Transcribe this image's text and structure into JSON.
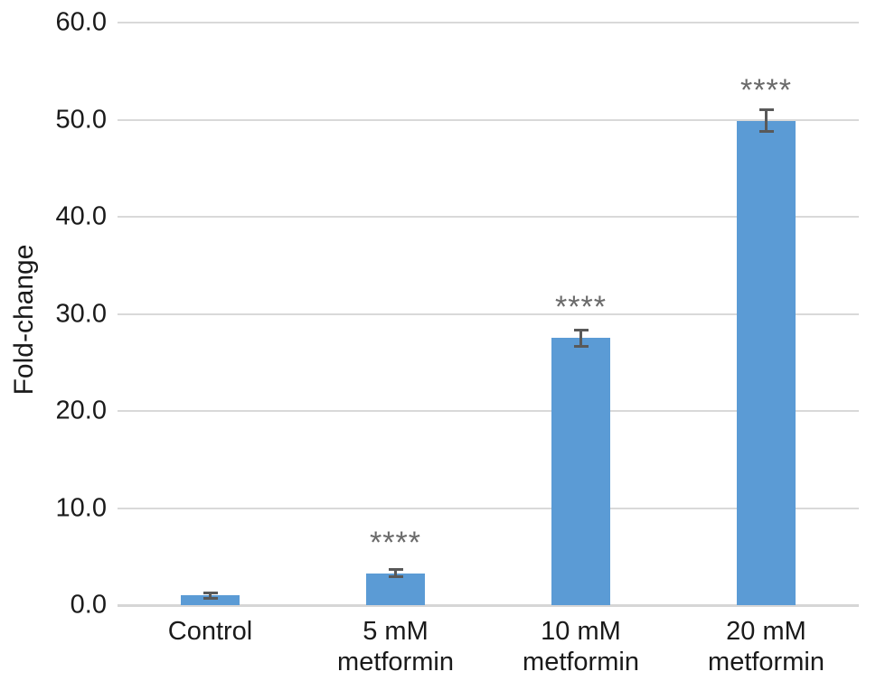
{
  "chart_data": {
    "type": "bar",
    "title": "",
    "xlabel": "",
    "ylabel": "Fold-change",
    "categories": [
      [
        "Control"
      ],
      [
        "5 mM",
        "metformin"
      ],
      [
        "10 mM",
        "metformin"
      ],
      [
        "20 mM",
        "metformin"
      ]
    ],
    "values": [
      1.0,
      3.3,
      27.5,
      49.9
    ],
    "errors": [
      0.15,
      0.2,
      0.7,
      1.0
    ],
    "significance": [
      "",
      "****",
      "****",
      "****"
    ],
    "ylim": [
      0,
      60
    ],
    "ytick_step": 10,
    "ytick_labels": [
      "0.0",
      "10.0",
      "20.0",
      "30.0",
      "40.0",
      "50.0",
      "60.0"
    ],
    "grid": true,
    "legend": "none",
    "bar_color": "#5b9bd5",
    "error_bar_color": "#595959",
    "significance_color": "#6a6a6a",
    "gridline_color": "#d9d9d9"
  }
}
